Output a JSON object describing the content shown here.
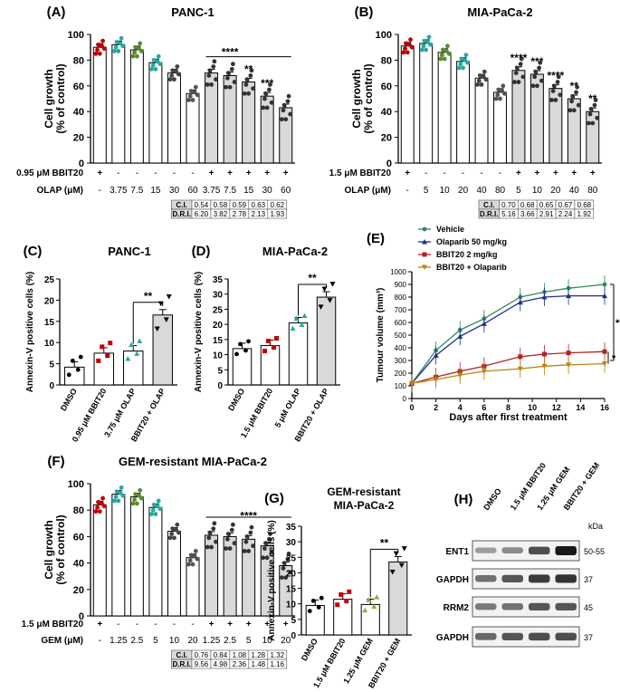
{
  "colors": {
    "white_bar": "#ffffff",
    "grey_bar": "#d9d9d9",
    "black": "#000000",
    "red": "#c00000",
    "teal": "#2aa8a0",
    "green": "#2e8b57",
    "navy": "#1f2f8f",
    "darkred": "#b22222",
    "gold": "#b8860b"
  },
  "chart_data": [
    {
      "type": "bar",
      "panel": "(A)",
      "title": "PANC-1",
      "ylabel": "Cell growth",
      "ylabel2": "(% of control)",
      "ylim": [
        0,
        100
      ],
      "yticks": [
        "0",
        "20",
        "40",
        "60",
        "80",
        "100"
      ],
      "values": [
        90,
        92,
        88,
        78,
        70,
        54,
        70,
        68,
        63,
        52,
        43
      ],
      "row1_label": "0.95 μM BBIT20",
      "row1": [
        "+",
        "-",
        "-",
        "-",
        "-",
        "-",
        "+",
        "+",
        "+",
        "+",
        "+"
      ],
      "row2_label": "OLAP (μM)",
      "row2": [
        "-",
        "3.75",
        "7.5",
        "15",
        "30",
        "60",
        "3.75",
        "7.5",
        "15",
        "30",
        "60"
      ],
      "sig": [
        {
          "bar": 7,
          "text": "****"
        },
        {
          "bar": 8,
          "text": "**"
        },
        {
          "bar": 9,
          "text": "***"
        }
      ],
      "table": {
        "ci_label": "C.I.",
        "ci": [
          "0.54",
          "0.58",
          "0.59",
          "0.63",
          "0.62"
        ],
        "dri_label": "D.R.I.",
        "dri": [
          "6.20",
          "3.82",
          "2.78",
          "2.13",
          "1.93"
        ]
      }
    },
    {
      "type": "bar",
      "panel": "(B)",
      "title": "MIA-PaCa-2",
      "ylabel": "Cell growth",
      "ylabel2": "(% of control)",
      "ylim": [
        0,
        100
      ],
      "yticks": [
        "0",
        "20",
        "40",
        "60",
        "80",
        "100"
      ],
      "values": [
        91,
        93,
        86,
        79,
        66,
        55,
        72,
        69,
        58,
        50,
        40
      ],
      "row1_label": "1.5 μM BBIT20",
      "row1": [
        "+",
        "-",
        "-",
        "-",
        "-",
        "-",
        "+",
        "+",
        "+",
        "+",
        "+"
      ],
      "row2_label": "OLAP (μM)",
      "row2": [
        "-",
        "5",
        "10",
        "20",
        "40",
        "80",
        "5",
        "10",
        "20",
        "40",
        "80"
      ],
      "sig": [
        {
          "bar": 6,
          "text": "****"
        },
        {
          "bar": 7,
          "text": "***"
        },
        {
          "bar": 8,
          "text": "****"
        },
        {
          "bar": 9,
          "text": "**"
        },
        {
          "bar": 10,
          "text": "**"
        }
      ],
      "table": {
        "ci_label": "C.I.",
        "ci": [
          "0.70",
          "0.68",
          "0.65",
          "0.67",
          "0.68"
        ],
        "dri_label": "D.R.I.",
        "dri": [
          "5.16",
          "3.66",
          "2.91",
          "2.24",
          "1.92"
        ]
      }
    },
    {
      "type": "bar",
      "panel": "(C)",
      "title": "PANC-1",
      "ylabel": "Annexin-V positive cells (%)",
      "ylim": [
        0,
        25
      ],
      "yticks": [
        "0",
        "5",
        "10",
        "15",
        "20",
        "25"
      ],
      "categories": [
        "DMSO",
        "0.95 μM BBIT20",
        "3.75 μM OLAP",
        "BBIT20 + OLAP"
      ],
      "values": [
        4.2,
        7.5,
        8,
        16.5
      ],
      "sig_text": "**"
    },
    {
      "type": "bar",
      "panel": "(D)",
      "title": "MIA-PaCa-2",
      "ylabel": "Annexin-V positive cells (%)",
      "ylim": [
        0,
        35
      ],
      "yticks": [
        "0",
        "5",
        "10",
        "15",
        "20",
        "25",
        "30",
        "35"
      ],
      "categories": [
        "DMSO",
        "1.5 μM BBIT20",
        "5 μM OLAP",
        "BBIT20 + OLAP"
      ],
      "values": [
        12,
        13,
        20.5,
        29
      ],
      "sig_text": "**"
    },
    {
      "type": "line",
      "panel": "(E)",
      "ylabel": "Tumour volume (mm³)",
      "xlabel": "Days after first treatment",
      "xlim": [
        0,
        16
      ],
      "ylim": [
        0,
        1000
      ],
      "xticks": [
        "0",
        "2",
        "4",
        "6",
        "8",
        "10",
        "12",
        "14",
        "16"
      ],
      "yticks": [
        "0",
        "100",
        "200",
        "300",
        "400",
        "500",
        "600",
        "700",
        "800",
        "900",
        "1000"
      ],
      "x": [
        0,
        2,
        4,
        6,
        9,
        11,
        13,
        16
      ],
      "series": [
        {
          "name": "Vehicle",
          "values": [
            120,
            380,
            540,
            630,
            800,
            840,
            870,
            900
          ]
        },
        {
          "name": "Olaparib 50 mg/kg",
          "values": [
            120,
            340,
            490,
            590,
            760,
            800,
            810,
            810
          ]
        },
        {
          "name": "BBIT20 2 mg/kg",
          "values": [
            120,
            170,
            215,
            255,
            330,
            350,
            360,
            370
          ]
        },
        {
          "name": "BBIT20 + Olaparib",
          "values": [
            120,
            150,
            185,
            215,
            235,
            255,
            265,
            275
          ]
        }
      ],
      "sig": [
        {
          "text": "****"
        },
        {
          "text": "*"
        }
      ]
    },
    {
      "type": "bar",
      "panel": "(F)",
      "title": "GEM-resistant MIA-PaCa-2",
      "ylabel": "Cell growth",
      "ylabel2": "(% of control)",
      "ylim": [
        0,
        100
      ],
      "yticks": [
        "0",
        "20",
        "40",
        "60",
        "80",
        "100"
      ],
      "values": [
        84,
        92,
        90,
        82,
        64,
        44,
        61,
        60,
        58,
        53,
        38
      ],
      "row1_label": "1.5 μM BBIT20",
      "row1": [
        "+",
        "-",
        "-",
        "-",
        "-",
        "-",
        "+",
        "+",
        "+",
        "+",
        "+"
      ],
      "row2_label": "GEM (μM)",
      "row2": [
        "-",
        "1.25",
        "2.5",
        "5",
        "10",
        "20",
        "1.25",
        "2.5",
        "5",
        "10",
        "20"
      ],
      "sig": [
        {
          "bar": 8,
          "text": "****"
        }
      ],
      "table": {
        "ci_label": "C.I.",
        "ci": [
          "0.76",
          "0.84",
          "1.08",
          "1.28",
          "1.32"
        ],
        "dri_label": "D.R.I.",
        "dri": [
          "9.56",
          "4.98",
          "2.36",
          "1.48",
          "1.16"
        ]
      }
    },
    {
      "type": "bar",
      "panel": "(G)",
      "title": "GEM-resistant",
      "title2": "MIA-PaCa-2",
      "ylabel": "Annexin-V positive cells (%)",
      "ylim": [
        0,
        35
      ],
      "yticks": [
        "0",
        "5",
        "10",
        "15",
        "20",
        "25",
        "30",
        "35"
      ],
      "categories": [
        "DMSO",
        "1.5 μM BBIT20",
        "1.25 μM GEM",
        "BBIT20 + GEM"
      ],
      "values": [
        9.5,
        11.5,
        9.8,
        23.5
      ],
      "sig_text": "**"
    },
    {
      "type": "blot",
      "panel": "(H)",
      "lanes": [
        "DMSO",
        "1.5 μM BBIT20",
        "1.25 μM GEM",
        "BBIT20 + GEM"
      ],
      "kda_label": "kDa",
      "rows": [
        {
          "label": "ENT1",
          "kda": "50-55",
          "intensity": [
            0.25,
            0.35,
            0.7,
            1.0
          ]
        },
        {
          "label": "GAPDH",
          "kda": "37",
          "intensity": [
            0.5,
            0.65,
            0.8,
            0.85
          ]
        },
        {
          "label": "RRM2",
          "kda": "45",
          "intensity": [
            0.45,
            0.5,
            0.65,
            0.65
          ]
        },
        {
          "label": "GAPDH",
          "kda": "37",
          "intensity": [
            0.55,
            0.65,
            0.7,
            0.7
          ]
        }
      ]
    }
  ]
}
